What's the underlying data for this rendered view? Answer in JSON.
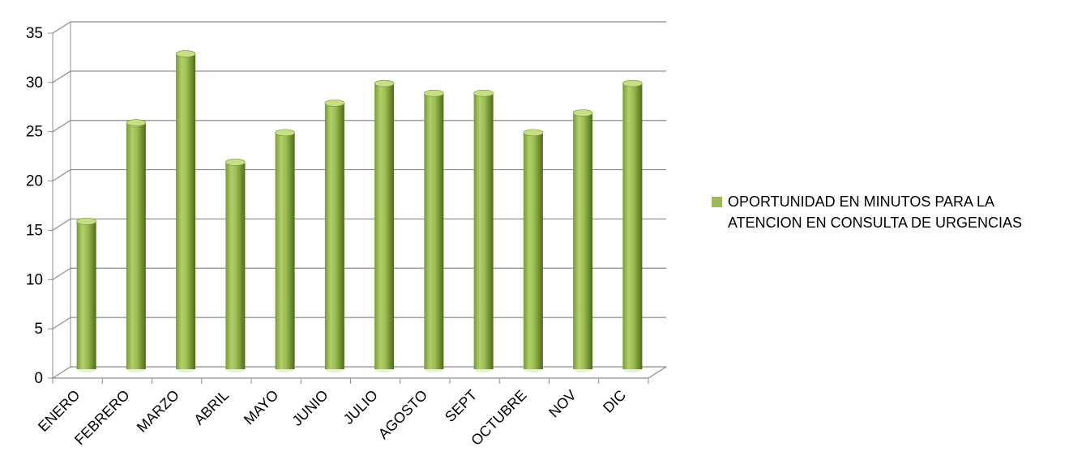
{
  "chart_data": {
    "type": "bar",
    "title": "",
    "xlabel": "",
    "ylabel": "",
    "ylim": [
      0,
      35
    ],
    "yticks": [
      0,
      5,
      10,
      15,
      20,
      25,
      30,
      35
    ],
    "categories": [
      "ENERO",
      "FEBRERO",
      "MARZO",
      "ABRIL",
      "MAYO",
      "JUNIO",
      "JULIO",
      "AGOSTO",
      "SEPT",
      "OCTUBRE",
      "NOV",
      "DIC"
    ],
    "series": [
      {
        "name": "OPORTUNIDAD EN MINUTOS PARA LA ATENCION EN CONSULTA DE URGENCIAS",
        "values": [
          15,
          25,
          32,
          21,
          24,
          27,
          29,
          28,
          28,
          24,
          26,
          29
        ]
      }
    ],
    "grid": true,
    "legend_position": "right",
    "style": "3d-cylinder",
    "colors": {
      "bar_light": "#b3cf6b",
      "bar_mid": "#8db33a",
      "bar_dark": "#4e6b1c",
      "bar_top": "#c7de86",
      "gridline": "#8c8c8c",
      "axis": "#8c8c8c",
      "legend_swatch": "#9bbb59"
    }
  }
}
